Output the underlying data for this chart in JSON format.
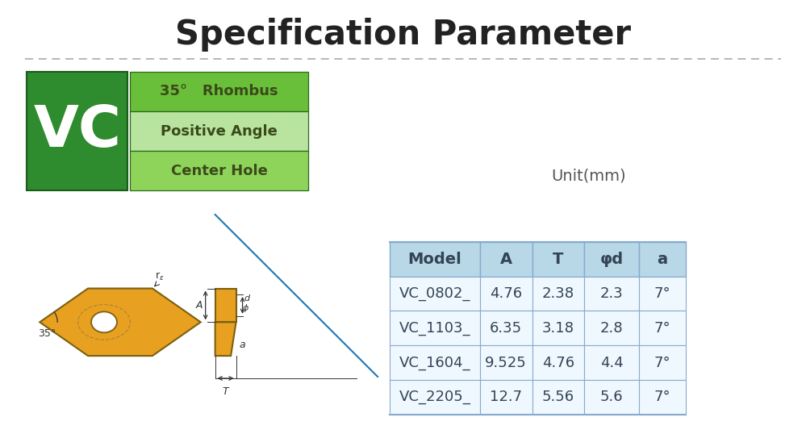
{
  "title": "Specification Parameter",
  "bg_color": "#ffffff",
  "title_color": "#222222",
  "dashed_line_color": "#aaaaaa",
  "vc_box_color": "#2e8b2e",
  "vc_text": "VC",
  "vc_text_color": "#ffffff",
  "row1_color": "#6abf3a",
  "row2_color": "#b8e4a0",
  "row3_color": "#8fd45a",
  "row1_text": "35°   Rhombus",
  "row2_text": "Positive Angle",
  "row3_text": "Center Hole",
  "row_text_color": "#3a4a1a",
  "unit_text": "Unit(mm)",
  "unit_color": "#555555",
  "table_header_bg": "#b8d8e8",
  "table_row_bg": "#f0f8ff",
  "table_border_color": "#88aacc",
  "table_headers": [
    "Model",
    "A",
    "T",
    "φd",
    "a"
  ],
  "table_rows": [
    [
      "VC_0802_",
      "4.76",
      "2.38",
      "2.3",
      "7°"
    ],
    [
      "VC_1103_",
      "6.35",
      "3.18",
      "2.8",
      "7°"
    ],
    [
      "VC_1604_",
      "9.525",
      "4.76",
      "4.4",
      "7°"
    ],
    [
      "VC_2205_",
      "12.7",
      "5.56",
      "5.6",
      "7°"
    ]
  ],
  "insert_color": "#e8a020",
  "insert_outline": "#7a6010",
  "ann_color": "#333333"
}
